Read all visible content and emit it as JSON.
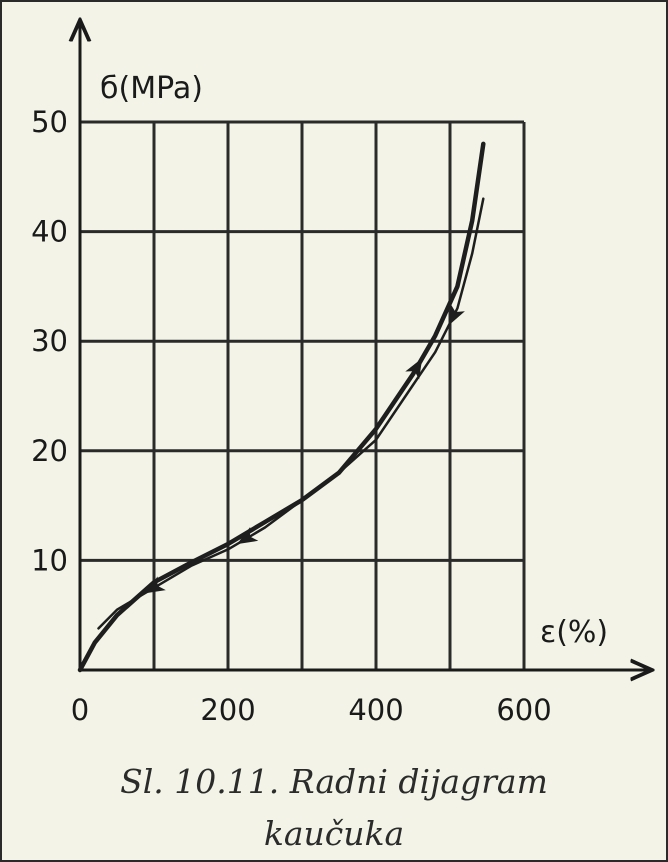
{
  "chart_data": {
    "type": "line",
    "ylabel": "б(MPa)",
    "xlabel": "ε(%)",
    "xlim": [
      0,
      600
    ],
    "ylim": [
      0,
      50
    ],
    "x_ticks": [
      "0",
      "200",
      "400",
      "600"
    ],
    "y_ticks": [
      "10",
      "20",
      "30",
      "40",
      "50"
    ],
    "grid": true,
    "series": [
      {
        "role": "loading",
        "x": [
          0,
          20,
          50,
          100,
          150,
          200,
          250,
          300,
          350,
          400,
          450,
          480,
          510,
          530,
          545
        ],
        "y": [
          0,
          2.5,
          5,
          8,
          9.8,
          11.5,
          13.5,
          15.5,
          18,
          22,
          27,
          30.5,
          35,
          41,
          48
        ]
      },
      {
        "role": "unloading",
        "x": [
          545,
          530,
          510,
          480,
          450,
          400,
          350,
          300,
          250,
          200,
          150,
          100,
          50,
          25
        ],
        "y": [
          43,
          38,
          33,
          29,
          26,
          21,
          18,
          15.5,
          13,
          11,
          9.5,
          7.5,
          5.5,
          3.8
        ]
      }
    ]
  },
  "caption": {
    "line1": "Sl. 10.11. Radni dijagram",
    "line2": "kaučuka"
  }
}
